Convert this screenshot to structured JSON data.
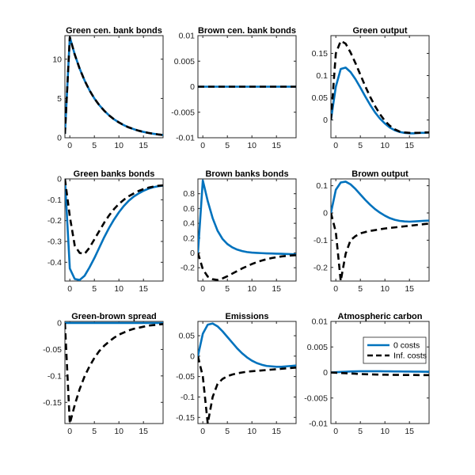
{
  "chart_data": [
    {
      "type": "line",
      "title": "Green cen. bank bonds",
      "xlim": [
        -1,
        19
      ],
      "ylim": [
        0,
        13
      ],
      "xticks": [
        0,
        5,
        10,
        15
      ],
      "yticks": [
        0,
        5,
        10
      ],
      "ytick_labels": [
        "0",
        "5",
        "10"
      ],
      "x": [
        -1,
        0,
        1,
        2,
        3,
        4,
        5,
        6,
        7,
        8,
        9,
        10,
        11,
        12,
        13,
        14,
        15,
        16,
        17,
        18,
        19
      ],
      "series": [
        {
          "name": "0 costs",
          "values": [
            0.5,
            12.8,
            10.6,
            8.8,
            7.3,
            6.05,
            5.0,
            4.15,
            3.45,
            2.85,
            2.35,
            1.95,
            1.6,
            1.32,
            1.1,
            0.9,
            0.75,
            0.62,
            0.51,
            0.42,
            0.35
          ]
        },
        {
          "name": "Inf. costs",
          "values": [
            0.5,
            12.8,
            10.6,
            8.8,
            7.3,
            6.05,
            5.0,
            4.15,
            3.45,
            2.85,
            2.35,
            1.95,
            1.6,
            1.32,
            1.1,
            0.9,
            0.75,
            0.62,
            0.51,
            0.42,
            0.35
          ]
        }
      ]
    },
    {
      "type": "line",
      "title": "Brown cen. bank bonds",
      "xlim": [
        -1,
        19
      ],
      "ylim": [
        -0.01,
        0.01
      ],
      "xticks": [
        0,
        5,
        10,
        15
      ],
      "yticks": [
        -0.01,
        -0.005,
        0,
        0.005,
        0.01
      ],
      "ytick_labels": [
        "-0.01",
        "-0.005",
        "0",
        "0.005",
        "0.01"
      ],
      "x": [
        -1,
        0,
        1,
        2,
        3,
        4,
        5,
        6,
        7,
        8,
        9,
        10,
        11,
        12,
        13,
        14,
        15,
        16,
        17,
        18,
        19
      ],
      "series": [
        {
          "name": "0 costs",
          "values": [
            0,
            0,
            0,
            0,
            0,
            0,
            0,
            0,
            0,
            0,
            0,
            0,
            0,
            0,
            0,
            0,
            0,
            0,
            0,
            0,
            0
          ]
        },
        {
          "name": "Inf. costs",
          "values": [
            0,
            0,
            0,
            0,
            0,
            0,
            0,
            0,
            0,
            0,
            0,
            0,
            0,
            0,
            0,
            0,
            0,
            0,
            0,
            0,
            0
          ]
        }
      ]
    },
    {
      "type": "line",
      "title": "Green output",
      "xlim": [
        -1,
        19
      ],
      "ylim": [
        -0.04,
        0.19
      ],
      "xticks": [
        0,
        5,
        10,
        15
      ],
      "yticks": [
        0,
        0.05,
        0.1,
        0.15
      ],
      "ytick_labels": [
        "0",
        "0.05",
        "0.1",
        "0.15"
      ],
      "x": [
        -1,
        0,
        1,
        2,
        3,
        4,
        5,
        6,
        7,
        8,
        9,
        10,
        11,
        12,
        13,
        14,
        15,
        16,
        17,
        18,
        19
      ],
      "series": [
        {
          "name": "0 costs",
          "values": [
            0,
            0.075,
            0.115,
            0.118,
            0.108,
            0.092,
            0.073,
            0.053,
            0.034,
            0.017,
            0.003,
            -0.008,
            -0.017,
            -0.023,
            -0.027,
            -0.029,
            -0.03,
            -0.03,
            -0.029,
            -0.029,
            -0.028
          ]
        },
        {
          "name": "Inf. costs",
          "values": [
            0,
            0.15,
            0.178,
            0.172,
            0.152,
            0.128,
            0.102,
            0.076,
            0.052,
            0.031,
            0.013,
            -0.002,
            -0.013,
            -0.021,
            -0.026,
            -0.028,
            -0.029,
            -0.029,
            -0.029,
            -0.028,
            -0.028
          ]
        }
      ]
    },
    {
      "type": "line",
      "title": "Green banks bonds",
      "xlim": [
        -1,
        19
      ],
      "ylim": [
        -0.49,
        0
      ],
      "xticks": [
        0,
        5,
        10,
        15
      ],
      "yticks": [
        -0.4,
        -0.3,
        -0.2,
        -0.1,
        0
      ],
      "ytick_labels": [
        "-0.4",
        "-0.3",
        "-0.2",
        "-0.1",
        "0"
      ],
      "x": [
        -1,
        0,
        1,
        2,
        3,
        4,
        5,
        6,
        7,
        8,
        9,
        10,
        11,
        12,
        13,
        14,
        15,
        16,
        17,
        18,
        19
      ],
      "series": [
        {
          "name": "0 costs",
          "values": [
            0,
            -0.43,
            -0.48,
            -0.485,
            -0.465,
            -0.425,
            -0.38,
            -0.33,
            -0.28,
            -0.235,
            -0.195,
            -0.16,
            -0.13,
            -0.105,
            -0.085,
            -0.07,
            -0.057,
            -0.047,
            -0.04,
            -0.035,
            -0.032
          ]
        },
        {
          "name": "Inf. costs",
          "values": [
            0,
            -0.18,
            -0.32,
            -0.355,
            -0.36,
            -0.33,
            -0.29,
            -0.25,
            -0.21,
            -0.175,
            -0.145,
            -0.12,
            -0.1,
            -0.083,
            -0.07,
            -0.058,
            -0.049,
            -0.042,
            -0.037,
            -0.033,
            -0.031
          ]
        }
      ]
    },
    {
      "type": "line",
      "title": "Brown banks bonds",
      "xlim": [
        -1,
        19
      ],
      "ylim": [
        -0.38,
        1.0
      ],
      "xticks": [
        0,
        5,
        10,
        15
      ],
      "yticks": [
        -0.2,
        0,
        0.2,
        0.4,
        0.6,
        0.8
      ],
      "ytick_labels": [
        "-0.2",
        "0",
        "0.2",
        "0.4",
        "0.6",
        "0.8"
      ],
      "x": [
        -1,
        0,
        1,
        2,
        3,
        4,
        5,
        6,
        7,
        8,
        9,
        10,
        11,
        12,
        13,
        14,
        15,
        16,
        17,
        18,
        19
      ],
      "series": [
        {
          "name": "0 costs",
          "values": [
            0,
            0.98,
            0.7,
            0.47,
            0.3,
            0.19,
            0.12,
            0.075,
            0.045,
            0.025,
            0.012,
            0.004,
            0,
            -0.003,
            -0.006,
            -0.008,
            -0.01,
            -0.012,
            -0.014,
            -0.017,
            -0.02
          ]
        },
        {
          "name": "Inf. costs",
          "values": [
            0,
            -0.22,
            -0.32,
            -0.355,
            -0.365,
            -0.345,
            -0.315,
            -0.28,
            -0.245,
            -0.21,
            -0.18,
            -0.15,
            -0.125,
            -0.103,
            -0.085,
            -0.07,
            -0.058,
            -0.048,
            -0.04,
            -0.034,
            -0.03
          ]
        }
      ]
    },
    {
      "type": "line",
      "title": "Brown output",
      "xlim": [
        -1,
        19
      ],
      "ylim": [
        -0.25,
        0.125
      ],
      "xticks": [
        0,
        5,
        10,
        15
      ],
      "yticks": [
        -0.2,
        -0.1,
        0,
        0.1
      ],
      "ytick_labels": [
        "-0.2",
        "-0.1",
        "0",
        "0.1"
      ],
      "x": [
        -1,
        0,
        1,
        2,
        3,
        4,
        5,
        6,
        7,
        8,
        9,
        10,
        11,
        12,
        13,
        14,
        15,
        16,
        17,
        18,
        19
      ],
      "series": [
        {
          "name": "0 costs",
          "values": [
            0,
            0.085,
            0.112,
            0.115,
            0.105,
            0.088,
            0.068,
            0.048,
            0.03,
            0.014,
            0.001,
            -0.01,
            -0.019,
            -0.025,
            -0.029,
            -0.031,
            -0.032,
            -0.031,
            -0.03,
            -0.029,
            -0.028
          ]
        },
        {
          "name": "Inf. costs",
          "values": [
            0,
            -0.07,
            -0.25,
            -0.15,
            -0.1,
            -0.085,
            -0.075,
            -0.07,
            -0.066,
            -0.063,
            -0.06,
            -0.057,
            -0.055,
            -0.053,
            -0.051,
            -0.049,
            -0.047,
            -0.045,
            -0.043,
            -0.041,
            -0.039
          ]
        }
      ]
    },
    {
      "type": "line",
      "title": "Green-brown spread",
      "xlim": [
        -1,
        19
      ],
      "ylim": [
        -0.19,
        0.003
      ],
      "xticks": [
        0,
        5,
        10,
        15
      ],
      "yticks": [
        -0.15,
        -0.1,
        -0.05,
        0
      ],
      "ytick_labels": [
        "-0.15",
        "-0.1",
        "-0.05",
        "0"
      ],
      "x": [
        -1,
        0,
        1,
        2,
        3,
        4,
        5,
        6,
        7,
        8,
        9,
        10,
        11,
        12,
        13,
        14,
        15,
        16,
        17,
        18,
        19
      ],
      "series": [
        {
          "name": "0 costs",
          "values": [
            0,
            0,
            0,
            0,
            0,
            0,
            0,
            0,
            0,
            0,
            0,
            0,
            0,
            0,
            0,
            0,
            0,
            0,
            0,
            0,
            0
          ]
        },
        {
          "name": "Inf. costs",
          "values": [
            0,
            -0.19,
            -0.155,
            -0.125,
            -0.101,
            -0.082,
            -0.066,
            -0.053,
            -0.043,
            -0.035,
            -0.028,
            -0.022,
            -0.018,
            -0.014,
            -0.011,
            -0.009,
            -0.007,
            -0.005,
            -0.004,
            -0.003,
            -0.002
          ]
        }
      ]
    },
    {
      "type": "line",
      "title": "Emissions",
      "xlim": [
        -1,
        19
      ],
      "ylim": [
        -0.165,
        0.085
      ],
      "xticks": [
        0,
        5,
        10,
        15
      ],
      "yticks": [
        -0.15,
        -0.1,
        -0.05,
        0,
        0.05
      ],
      "ytick_labels": [
        "-0.15",
        "-0.1",
        "-0.05",
        "0",
        "0.05"
      ],
      "x": [
        -1,
        0,
        1,
        2,
        3,
        4,
        5,
        6,
        7,
        8,
        9,
        10,
        11,
        12,
        13,
        14,
        15,
        16,
        17,
        18,
        19
      ],
      "series": [
        {
          "name": "0 costs",
          "values": [
            0,
            0.055,
            0.077,
            0.08,
            0.073,
            0.061,
            0.047,
            0.033,
            0.019,
            0.007,
            -0.003,
            -0.011,
            -0.017,
            -0.021,
            -0.024,
            -0.025,
            -0.026,
            -0.026,
            -0.025,
            -0.024,
            -0.023
          ]
        },
        {
          "name": "Inf. costs",
          "values": [
            0,
            -0.05,
            -0.165,
            -0.1,
            -0.068,
            -0.056,
            -0.049,
            -0.045,
            -0.042,
            -0.04,
            -0.038,
            -0.037,
            -0.036,
            -0.035,
            -0.034,
            -0.033,
            -0.032,
            -0.031,
            -0.03,
            -0.029,
            -0.028
          ]
        }
      ]
    },
    {
      "type": "line",
      "title": "Atmospheric carbon",
      "xlim": [
        -1,
        19
      ],
      "ylim": [
        -0.01,
        0.01
      ],
      "xticks": [
        0,
        5,
        10,
        15
      ],
      "yticks": [
        -0.01,
        -0.005,
        0,
        0.005,
        0.01
      ],
      "ytick_labels": [
        "-0.01",
        "-0.005",
        "0",
        "0.005",
        "0.01"
      ],
      "x": [
        -1,
        0,
        1,
        2,
        3,
        4,
        5,
        6,
        7,
        8,
        9,
        10,
        11,
        12,
        13,
        14,
        15,
        16,
        17,
        18,
        19
      ],
      "series": [
        {
          "name": "0 costs",
          "values": [
            0,
            5e-05,
            0.0001,
            0.00015,
            0.0002,
            0.00022,
            0.00024,
            0.00025,
            0.00025,
            0.00025,
            0.00024,
            0.00023,
            0.00022,
            0.00021,
            0.0002,
            0.00019,
            0.00018,
            0.00017,
            0.00016,
            0.00015,
            0.00014
          ]
        },
        {
          "name": "Inf. costs",
          "values": [
            0,
            -5e-05,
            -0.0001,
            -0.00015,
            -0.0002,
            -0.00025,
            -0.0003,
            -0.00034,
            -0.00037,
            -0.0004,
            -0.00042,
            -0.00044,
            -0.00046,
            -0.00047,
            -0.00048,
            -0.00049,
            -0.0005,
            -0.0005,
            -0.00051,
            -0.00051,
            -0.00052
          ]
        }
      ],
      "legend": {
        "placement": "top-right",
        "entries": [
          "0 costs",
          "Inf. costs"
        ]
      }
    }
  ],
  "style": {
    "series_colors": [
      "#0072BD",
      "#000000"
    ],
    "series_dash": [
      "solid",
      "dashed"
    ],
    "axes_color": "#262626"
  }
}
